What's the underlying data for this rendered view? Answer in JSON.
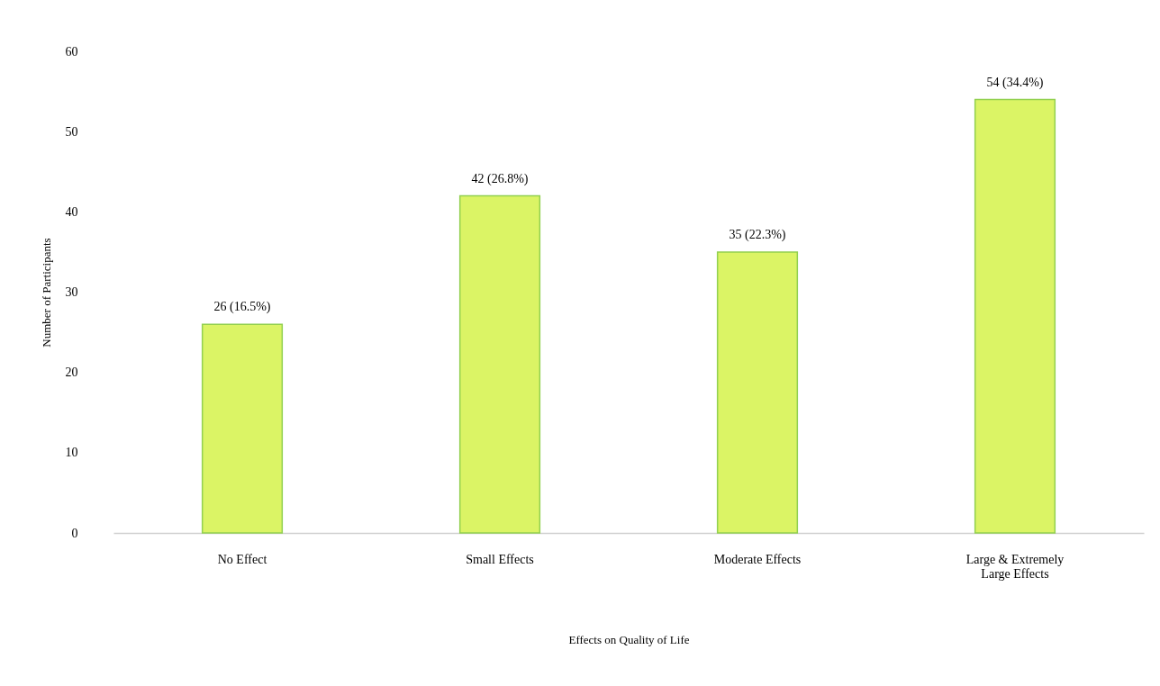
{
  "chart_data": {
    "type": "bar",
    "xlabel": "Effects on Quality of Life",
    "ylabel": "Number of Participants",
    "categories": [
      "No Effect",
      "Small Effects",
      "Moderate Effects",
      "Large & Extremely Large Effects"
    ],
    "values": [
      26,
      42,
      35,
      54
    ],
    "value_labels": [
      "26 (16.5%)",
      "42 (26.8%)",
      "35 (22.3%)",
      "54 (34.4%)"
    ],
    "color": "#dbf465",
    "ylim": [
      0,
      60
    ],
    "yticks": [
      0,
      10,
      20,
      30,
      40,
      50,
      60
    ],
    "grid": false
  }
}
